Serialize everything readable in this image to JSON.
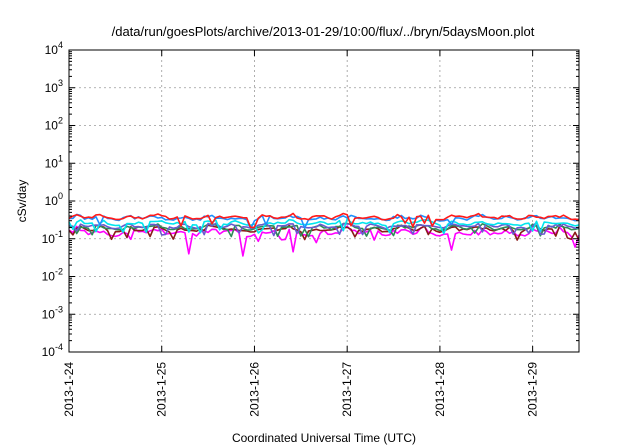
{
  "chart_data": {
    "type": "line",
    "title": "/data/run/goesPlots/archive/2013-01-29/10:00/flux/../bryn/5daysMoon.plot",
    "xlabel": "Coordinated Universal Time (UTC)",
    "ylabel": "cSv/day",
    "yscale": "log",
    "ylim": [
      0.0001,
      10000
    ],
    "xlim": [
      "2013-01-24T00:00",
      "2013-01-29T12:00"
    ],
    "grid": true,
    "x_ticks": [
      {
        "value": "2013-01-24T00:00",
        "label": "2013-1-24"
      },
      {
        "value": "2013-01-25T00:00",
        "label": "2013-1-25"
      },
      {
        "value": "2013-01-26T00:00",
        "label": "2013-1-26"
      },
      {
        "value": "2013-01-27T00:00",
        "label": "2013-1-27"
      },
      {
        "value": "2013-01-28T00:00",
        "label": "2013-1-28"
      },
      {
        "value": "2013-01-29T00:00",
        "label": "2013-1-29"
      }
    ],
    "y_ticks": [
      {
        "value": 0.0001,
        "base": "10",
        "exp": "-4"
      },
      {
        "value": 0.001,
        "base": "10",
        "exp": "-3"
      },
      {
        "value": 0.01,
        "base": "10",
        "exp": "-2"
      },
      {
        "value": 0.1,
        "base": "10",
        "exp": "-1"
      },
      {
        "value": 1,
        "base": "10",
        "exp": "0"
      },
      {
        "value": 10,
        "base": "10",
        "exp": "1"
      },
      {
        "value": 100,
        "base": "10",
        "exp": "2"
      },
      {
        "value": 1000,
        "base": "10",
        "exp": "3"
      },
      {
        "value": 10000,
        "base": "10",
        "exp": "4"
      }
    ],
    "series": [
      {
        "color": "#ff00ff",
        "base": 0.14,
        "amp": 0.12,
        "dips": [
          {
            "x": "2013-01-25T07:00",
            "y": 0.04
          },
          {
            "x": "2013-01-25T21:00",
            "y": 0.035
          },
          {
            "x": "2013-01-26T10:00",
            "y": 0.045
          },
          {
            "x": "2013-01-28T03:00",
            "y": 0.05
          },
          {
            "x": "2013-01-29T11:00",
            "y": 0.06
          }
        ]
      },
      {
        "color": "#8b1a1a",
        "base": 0.17,
        "amp": 0.1,
        "dips": []
      },
      {
        "color": "#2e8b57",
        "base": 0.19,
        "amp": 0.1,
        "dips": []
      },
      {
        "color": "#6a5acd",
        "base": 0.21,
        "amp": 0.1,
        "dips": []
      },
      {
        "color": "#00e5ee",
        "base": 0.25,
        "amp": 0.12,
        "dips": []
      },
      {
        "color": "#ff1a1a",
        "base": 0.36,
        "amp": 0.18,
        "dips": []
      },
      {
        "color": "#1e90ff",
        "base": 0.34,
        "amp": 0.17,
        "dips": []
      }
    ]
  }
}
